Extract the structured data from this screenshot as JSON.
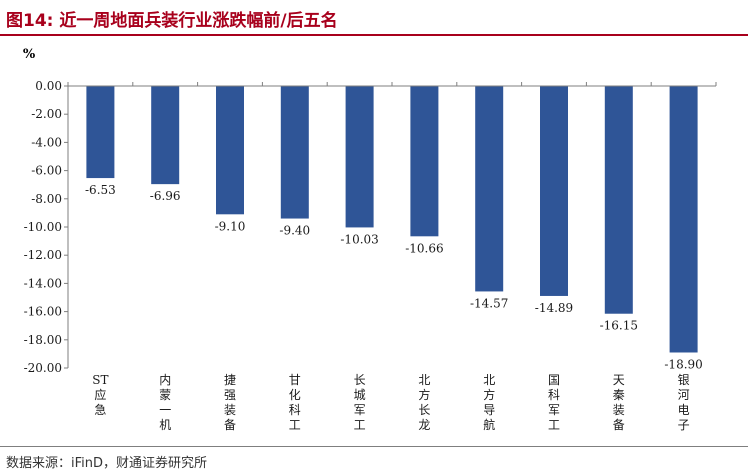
{
  "page": {
    "title": "图14: 近一周地面兵装行业涨跌幅前/后五名",
    "source": "数据来源：iFinD，财通证券研究所"
  },
  "chart_data": {
    "type": "bar",
    "title": "图14: 近一周地面兵装行业涨跌幅前/后五名",
    "ylabel": "%",
    "xlabel": "",
    "ylim": [
      -20,
      0
    ],
    "yticks": [
      "0.00",
      "-2.00",
      "-4.00",
      "-6.00",
      "-8.00",
      "-10.00",
      "-12.00",
      "-14.00",
      "-16.00",
      "-18.00",
      "-20.00"
    ],
    "categories": [
      "ST应急",
      "内蒙一机",
      "捷强装备",
      "甘化科工",
      "长城军工",
      "北方长龙",
      "北方导航",
      "国科军工",
      "天秦装备",
      "银河电子"
    ],
    "values": [
      -6.53,
      -6.96,
      -9.1,
      -9.4,
      -10.03,
      -10.66,
      -14.57,
      -14.89,
      -16.15,
      -18.9
    ],
    "data_labels": [
      "-6.53",
      "-6.96",
      "-9.10",
      "-9.40",
      "-10.03",
      "-10.66",
      "-14.57",
      "-14.89",
      "-16.15",
      "-18.90"
    ],
    "bar_color": "#2f5597",
    "grid": false,
    "legend": "none"
  }
}
